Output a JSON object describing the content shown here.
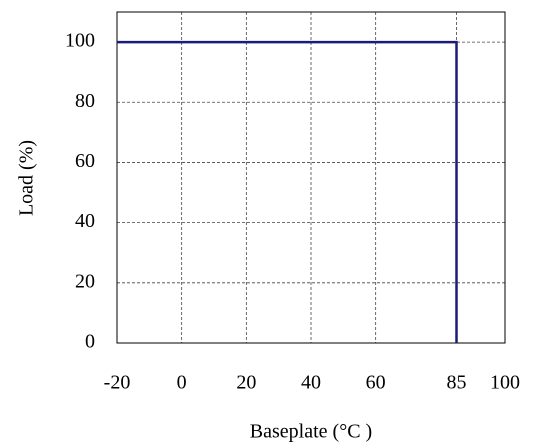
{
  "chart_data": {
    "type": "line",
    "x_label": "Baseplate (°C )",
    "y_label": "Load (%)",
    "x": [
      -20,
      85,
      85
    ],
    "series": [
      {
        "values": [
          100,
          100,
          0
        ],
        "color": "#1c1c78"
      }
    ],
    "xlim": [
      -20,
      100
    ],
    "xticks": [
      -20,
      0,
      20,
      40,
      60,
      85,
      100
    ],
    "ylim": [
      0,
      110
    ],
    "yticks": [
      0,
      20,
      40,
      60,
      80,
      100
    ],
    "grid": true
  }
}
